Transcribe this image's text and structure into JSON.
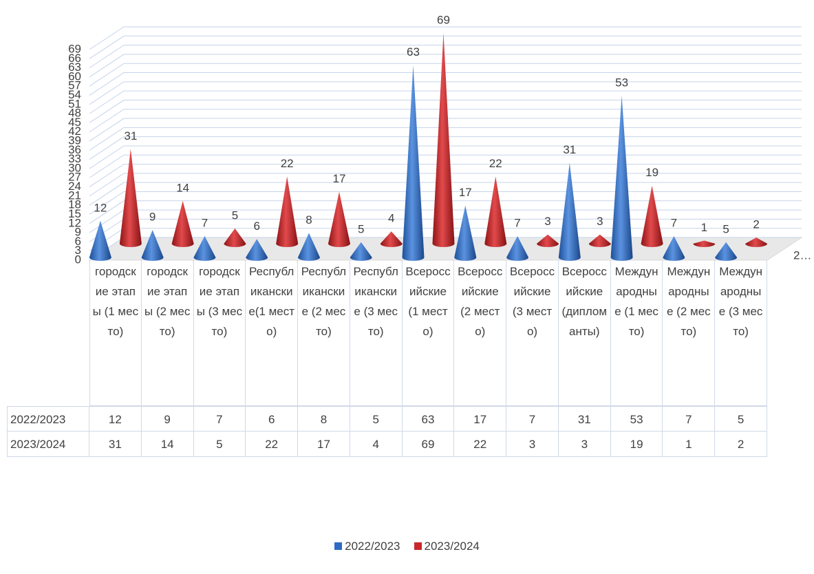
{
  "chart_data": {
    "type": "cone3d",
    "categories": [
      "городские этапы (1 место)",
      "городские этапы (2 место)",
      "городские этапы (3 место)",
      "Республиканские(1 место)",
      "Республиканские (2 место)",
      "Республиканские (3 место)",
      "Всероссийские (1 место)",
      "Всероссийские (2 место)",
      "Всероссийские (3 место)",
      "Всероссийские (дипломанты)",
      "Международные (1 место)",
      "Международные (2 место)",
      "Международные (3 место)"
    ],
    "series": [
      {
        "name": "2022/2023",
        "color": "#2e6bc4",
        "values": [
          12,
          9,
          7,
          6,
          8,
          5,
          63,
          17,
          7,
          31,
          53,
          7,
          5
        ]
      },
      {
        "name": "2023/2024",
        "color": "#c8282a",
        "values": [
          31,
          14,
          5,
          22,
          17,
          4,
          69,
          22,
          3,
          3,
          19,
          1,
          2
        ]
      }
    ],
    "depth_axis_label": "2…",
    "ylim": [
      0,
      69
    ],
    "yticks": [
      0,
      3,
      6,
      9,
      12,
      15,
      18,
      21,
      24,
      27,
      30,
      33,
      36,
      39,
      42,
      45,
      48,
      51,
      54,
      57,
      60,
      63,
      66,
      69
    ],
    "grid": true,
    "legend": "bottom"
  }
}
